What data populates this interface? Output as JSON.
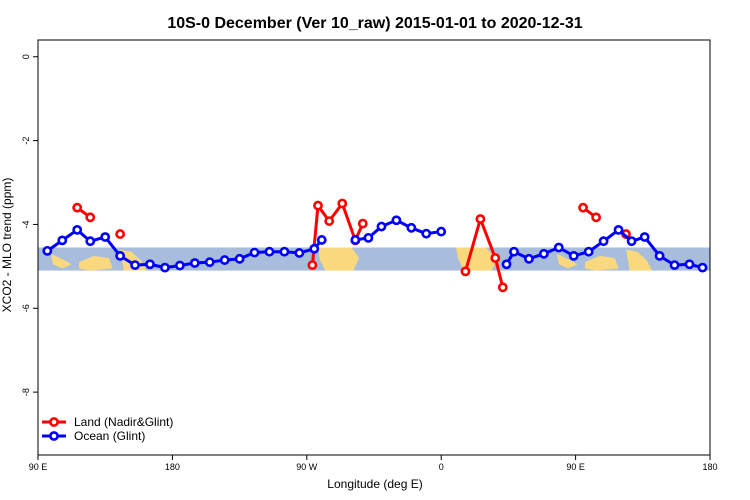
{
  "chart_data": {
    "type": "line",
    "title": "10S-0 December (Ver 10_raw)   2015-01-01 to 2020-12-31",
    "xlabel": "Longitude (deg E)",
    "ylabel": "XCO2 - MLO trend (ppm)",
    "xlim": [
      90,
      450
    ],
    "ylim": [
      -9.5,
      0.4
    ],
    "x_ticks": [
      {
        "value": 90,
        "label": "90 E"
      },
      {
        "value": 162,
        "label": "180"
      },
      {
        "value": 234,
        "label": "90 W"
      },
      {
        "value": 306,
        "label": "0"
      },
      {
        "value": 378,
        "label": "90 E"
      },
      {
        "value": 450,
        "label": "180"
      }
    ],
    "y_ticks": [
      {
        "value": 0,
        "label": "0"
      },
      {
        "value": -2,
        "label": "-2"
      },
      {
        "value": -4,
        "label": "-4"
      },
      {
        "value": -6,
        "label": "-6"
      },
      {
        "value": -8,
        "label": "-8"
      }
    ],
    "grid": false,
    "legend_position": "bottom-left",
    "background_band": {
      "ymin": -5.1,
      "ymax": -4.55,
      "ocean_color": "#a7bddb",
      "land_color": "#fad87e"
    },
    "series": [
      {
        "name": "Land (Nadir&Glint)",
        "color": "#ff0000",
        "segments": [
          [
            [
              111,
              -3.6
            ],
            [
              118,
              -3.83
            ]
          ],
          [
            [
              134,
              -4.23
            ]
          ],
          [
            [
              237,
              -4.97
            ],
            [
              240,
              -3.55
            ],
            [
              246,
              -3.92
            ],
            [
              253,
              -3.5
            ],
            [
              260,
              -4.38
            ],
            [
              264,
              -3.98
            ]
          ],
          [
            [
              319,
              -5.12
            ],
            [
              327,
              -3.87
            ],
            [
              335,
              -4.8
            ],
            [
              339,
              -5.5
            ]
          ],
          [
            [
              382,
              -3.6
            ],
            [
              389,
              -3.83
            ]
          ],
          [
            [
              405,
              -4.23
            ]
          ]
        ]
      },
      {
        "name": "Ocean (Glint)",
        "color": "#0000ff",
        "segments": [
          [
            [
              95,
              -4.63
            ],
            [
              103,
              -4.38
            ],
            [
              111,
              -4.13
            ],
            [
              118,
              -4.4
            ],
            [
              126,
              -4.3
            ],
            [
              134,
              -4.75
            ],
            [
              142,
              -4.97
            ],
            [
              150,
              -4.95
            ],
            [
              158,
              -5.03
            ],
            [
              166,
              -4.98
            ],
            [
              174,
              -4.92
            ],
            [
              182,
              -4.9
            ],
            [
              190,
              -4.85
            ],
            [
              198,
              -4.82
            ],
            [
              206,
              -4.67
            ],
            [
              214,
              -4.65
            ],
            [
              222,
              -4.65
            ],
            [
              230,
              -4.68
            ],
            [
              238,
              -4.58
            ],
            [
              242,
              -4.37
            ]
          ],
          [
            [
              260,
              -4.37
            ],
            [
              267,
              -4.32
            ],
            [
              274,
              -4.05
            ],
            [
              282,
              -3.9
            ],
            [
              290,
              -4.08
            ],
            [
              298,
              -4.22
            ],
            [
              306,
              -4.17
            ]
          ],
          [
            [
              341,
              -4.95
            ],
            [
              345,
              -4.65
            ],
            [
              353,
              -4.82
            ],
            [
              361,
              -4.7
            ],
            [
              369,
              -4.55
            ],
            [
              377,
              -4.75
            ],
            [
              385,
              -4.65
            ],
            [
              393,
              -4.4
            ],
            [
              401,
              -4.13
            ],
            [
              408,
              -4.4
            ],
            [
              415,
              -4.3
            ],
            [
              423,
              -4.75
            ],
            [
              431,
              -4.97
            ],
            [
              439,
              -4.95
            ],
            [
              446,
              -5.03
            ]
          ]
        ]
      }
    ]
  }
}
